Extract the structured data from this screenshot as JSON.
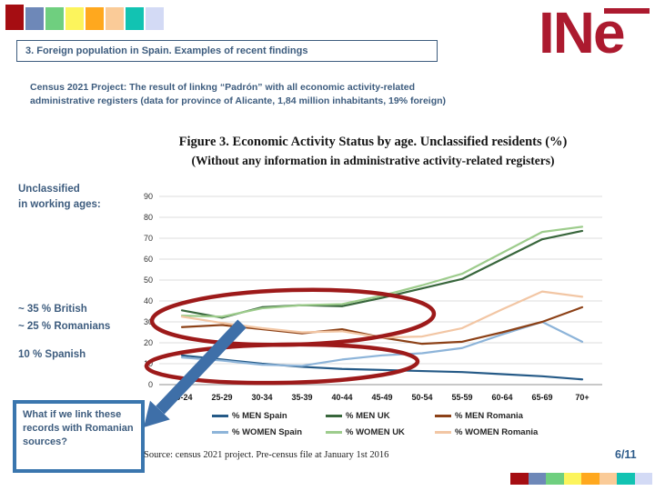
{
  "slide": {
    "header_title": "3. Foreign population in Spain. Examples of recent findings",
    "intro_line1": "Census 2021 Project: The result of linkng “Padrón” with all economic activity-related",
    "intro_line2": "administrative registers (data for province of Alicante, 1,84 million inhabitants, 19% foreign)",
    "page_number": "6/11",
    "logo_text": "INe"
  },
  "deco_colors": [
    "#A50D12",
    "#6E88B8",
    "#6FCF7F",
    "#FCF45C",
    "#FFA81E",
    "#FACB98",
    "#12C3B2",
    "#D3DAF5"
  ],
  "annotations": {
    "unclassified_line1": "Unclassified",
    "unclassified_line2": "in working ages:",
    "stat_british": "~ 35 % British",
    "stat_romanians": "~ 25 % Romanians",
    "stat_spanish": "10 % Spanish",
    "question_box_text": "What if we link these records with Romanian sources?",
    "ellipse_color": "#9D1A1A",
    "arrow_color": "#3E6FA8"
  },
  "chart_data": {
    "type": "line",
    "title": "Figure 3. Economic Activity Status by age. Unclassified residents (%)",
    "subtitle": "(Without any information in administrative activity-related registers)",
    "source": "Source: census 2021 project. Pre-census file at January 1st 2016",
    "xlabel": "",
    "ylabel": "",
    "ylim": [
      0,
      90
    ],
    "ytick_step": 10,
    "grid": true,
    "legend_position": "bottom",
    "categories": [
      "20-24",
      "25-29",
      "30-34",
      "35-39",
      "40-44",
      "45-49",
      "50-54",
      "55-59",
      "60-64",
      "65-69",
      "70+"
    ],
    "series": [
      {
        "name": "% MEN Spain",
        "color": "#255A87",
        "values": [
          14,
          12,
          10,
          8.5,
          7.5,
          7,
          6.5,
          6,
          5,
          4,
          2.5
        ]
      },
      {
        "name": "% WOMEN Spain",
        "color": "#8DB4D9",
        "values": [
          13,
          11.5,
          9.5,
          9,
          12,
          14,
          15,
          17.5,
          24,
          30,
          20.5
        ]
      },
      {
        "name": "% MEN UK",
        "color": "#38663C",
        "values": [
          35.5,
          32,
          37,
          38,
          37.5,
          41.5,
          46,
          50.5,
          60,
          69.5,
          73.5
        ]
      },
      {
        "name": "% WOMEN UK",
        "color": "#9DCC8C",
        "values": [
          33,
          32.5,
          36.5,
          38,
          38.5,
          42.5,
          47.5,
          53,
          63,
          73,
          75.5
        ]
      },
      {
        "name": "% MEN Romania",
        "color": "#8C4117",
        "values": [
          27.5,
          28.5,
          26.5,
          24.5,
          26.5,
          22.5,
          19.5,
          20.5,
          25,
          30,
          37
        ]
      },
      {
        "name": "% WOMEN Romania",
        "color": "#F2C6A4",
        "values": [
          32.5,
          29.5,
          27,
          25,
          25.5,
          22.5,
          23,
          27,
          36,
          44.5,
          42
        ]
      }
    ]
  }
}
